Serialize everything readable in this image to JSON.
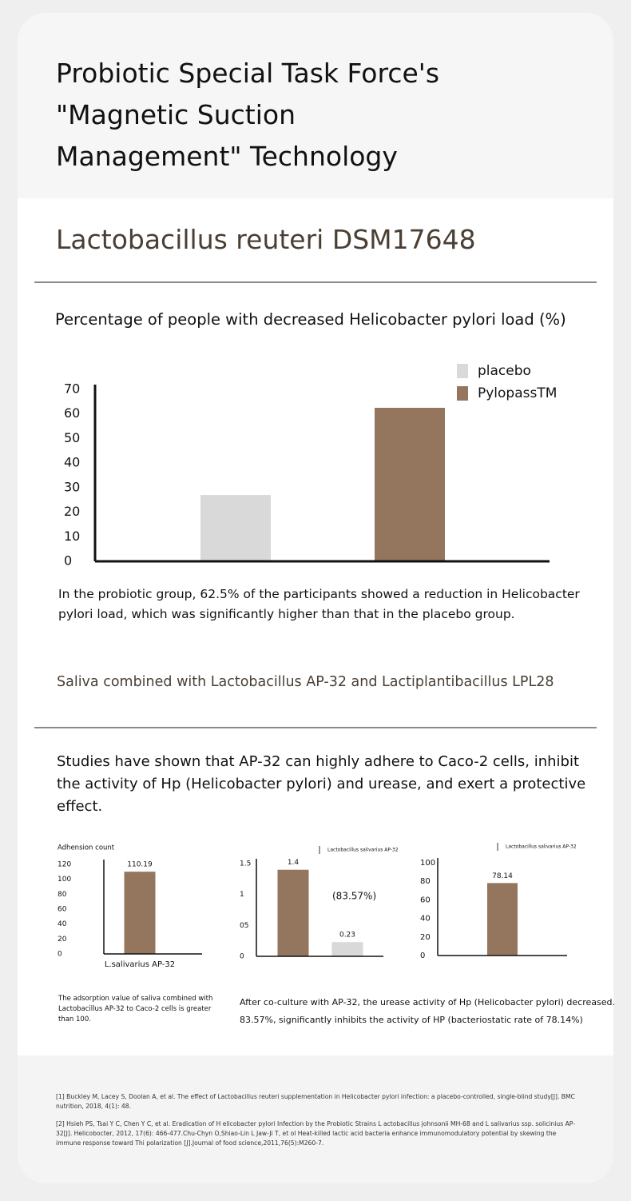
{
  "header": {
    "title": "Probiotic Special Task Force's \"Magnetic Suction Management\" Technology"
  },
  "section1": {
    "heading": "Lactobacillus reuteri DSM17648",
    "caption": "In the probiotic group, 62.5% of the participants showed a reduction in Helicobacter pylori load, which was significantly higher than that in the placebo group."
  },
  "section2": {
    "heading": "Saliva combined with Lactobacillus AP-32 and Lactiplantibacillus LPL28",
    "intro": "Studies have shown that AP-32 can highly adhere to Caco-2 cells, inhibit the activity of Hp (Helicobacter pylori) and urease, and exert a protective effect.",
    "captions": [
      "The adsorption value of saliva combined with Lactobacillus AP-32 to Caco-2 cells is greater than 100.",
      "After co-culture with AP-32, the urease activity of Hp (Helicobacter pylori) decreased.",
      "83.57%, significantly inhibits the activity of HP (bacteriostatic rate of 78.14%)"
    ]
  },
  "chart_data": [
    {
      "type": "bar",
      "title": "Percentage of people with decreased Helicobacter pylori load (%)",
      "categories": [
        null
      ],
      "series": [
        {
          "name": "placebo",
          "color": "#d9d9d9",
          "values": [
            27
          ]
        },
        {
          "name": "PylopassTM",
          "color": "#94765e",
          "values": [
            62.5
          ]
        }
      ],
      "ylim": [
        0,
        70
      ],
      "yticks": [
        0,
        10,
        20,
        30,
        40,
        50,
        60,
        70
      ],
      "grid": false,
      "data_labels": false
    },
    {
      "type": "bar",
      "ylabel": "Adhension count",
      "categories": [
        "L.salivarius AP-32"
      ],
      "series": [
        {
          "color": "#94765e",
          "values": [
            110.19
          ]
        }
      ],
      "ylim": [
        0,
        120
      ],
      "yticks": [
        0,
        20,
        40,
        60,
        80,
        100,
        120
      ],
      "grid": false,
      "data_labels": true
    },
    {
      "type": "bar",
      "categories": [
        null,
        null
      ],
      "series": [
        {
          "name": "Lactobacillus salivarius AP-32",
          "colors": [
            "#94765e",
            "#d9d9d9"
          ],
          "values": [
            1.4,
            0.23
          ]
        }
      ],
      "annotations": [
        "(83.57%)"
      ],
      "ylim": [
        0,
        1.5
      ],
      "yticks": [
        0,
        {
          "value": 0.5,
          "label": "05"
        },
        1,
        1.5
      ],
      "grid": false,
      "data_labels": true
    },
    {
      "type": "bar",
      "categories": [
        null
      ],
      "series": [
        {
          "name": "Lactobacillus salivarius AP-32",
          "color": "#94765e",
          "values": [
            78.14
          ]
        }
      ],
      "ylim": [
        0,
        100
      ],
      "yticks": [
        0,
        20,
        40,
        60,
        80,
        100
      ],
      "grid": false,
      "data_labels": true
    }
  ],
  "references": [
    "[1] Buckley M, Lacey S, Doolan A, et al. The effect of Lactobacillus reuteri supplementation in Helicobacter pylori infection: a placebo-controlled, single-blind study[J]. BMC nutrition, 2018, 4(1): 48.",
    "[2] Hsieh PS, Tsai Y C, Chen Y C, et al. Eradication of H elicobacter pylori Infection by the Probiotic Strains L actobacillus johnsonii MH-68 and L salivarius ssp. solicinius AP-32[J]. Helicobocter, 2012, 17(6): 466-477.Chu-Chyn O,Shiao-Lin L Jaw-Ji T, et ol Heat-killed lactic acid bacteria enhance immunomodulatory potential by skewing the immune response toward Thi polarization [J].Journal of food science,2011,76(5):M260-7."
  ]
}
